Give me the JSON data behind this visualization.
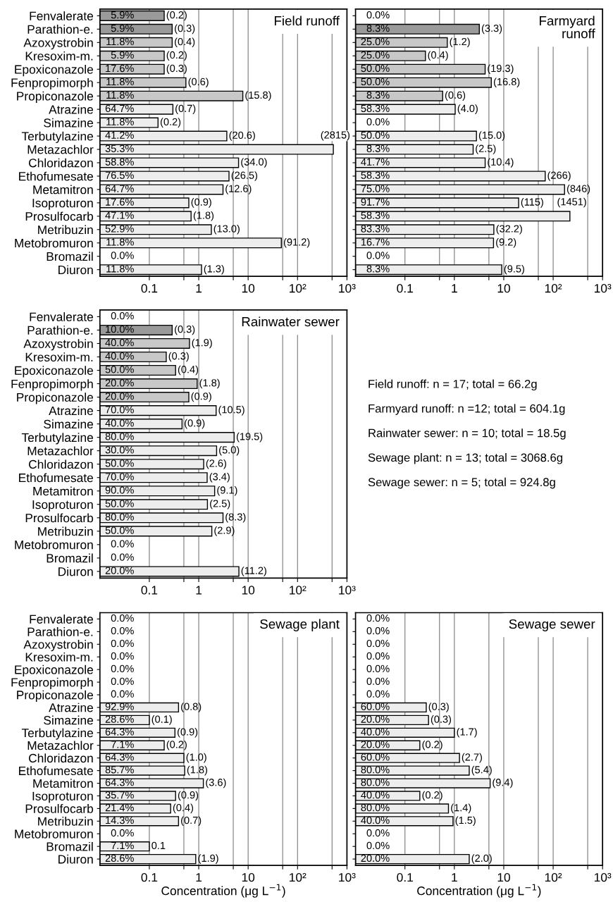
{
  "chart_data": [
    {
      "type": "bar",
      "orientation": "horizontal",
      "log": "x",
      "grid": "x",
      "title": "Field runoff",
      "categories": [
        "Fenvalerate",
        "Parathion-e.",
        "Azoxystrobin",
        "Kresoxim-m.",
        "Epoxiconazole",
        "Fenpropimorph",
        "Propiconazole",
        "Atrazine",
        "Simazine",
        "Terbutylazine",
        "Metazachlor",
        "Chloridazon",
        "Ethofumesate",
        "Metamitron",
        "Isoproturon",
        "Prosulfocarb",
        "Metribuzin",
        "Metobromuron",
        "Bromazil",
        "Diuron"
      ],
      "values": [
        0.2,
        0.29,
        0.29,
        0.2,
        0.2,
        0.55,
        7.8,
        0.3,
        0.15,
        3.7,
        530,
        6.4,
        4.1,
        3.1,
        0.63,
        0.7,
        1.8,
        47,
        null,
        1.14
      ],
      "colors": [
        "#9a9a9a",
        "#9a9a9a",
        "#c8c8c8",
        "#c8c8c8",
        "#c8c8c8",
        "#c8c8c8",
        "#c8c8c8",
        "#ededed",
        "#ededed",
        "#ededed",
        "#ededed",
        "#ededed",
        "#ededed",
        "#ededed",
        "#ededed",
        "#ededed",
        "#ededed",
        "#ededed",
        "#ededed",
        "#ededed"
      ],
      "xlim": [
        0.01,
        1000
      ],
      "xticks": [
        0.1,
        {
          "value": 0.5,
          "label": null
        },
        1,
        {
          "value": 5,
          "label": null
        },
        10,
        {
          "value": 50,
          "label": null
        },
        {
          "value": 100,
          "label": "10²"
        },
        {
          "value": 500,
          "label": null
        },
        {
          "value": 1000,
          "label": "10³"
        }
      ],
      "annotations": [
        "5.9%",
        "5.9%",
        "11.8%",
        "5.9%",
        "17.6%",
        "11.8%",
        "11.8%",
        "64.7%",
        "11.8%",
        "41.2%",
        "35.3%",
        "58.8%",
        "76.5%",
        "64.7%",
        "17.6%",
        "47.1%",
        "52.9%",
        "11.8%",
        "0.0%",
        "11.8%",
        {
          "text": "(0.2)",
          "x": 0.2,
          "y": "Fenvalerate"
        },
        {
          "text": "(0.3)",
          "x": 0.29,
          "y": "Parathion-e."
        },
        {
          "text": "(0.4)",
          "x": 0.29,
          "y": "Azoxystrobin"
        },
        {
          "text": "(0.2)",
          "x": 0.2,
          "y": "Kresoxim-m."
        },
        {
          "text": "(0.3)",
          "x": 0.2,
          "y": "Epoxiconazole"
        },
        {
          "text": "(0.6)",
          "x": 0.55,
          "y": "Fenpropimorph"
        },
        {
          "text": "(15.8)",
          "x": 7.8,
          "y": "Propiconazole"
        },
        {
          "text": "(0.7)",
          "x": 0.3,
          "y": "Atrazine"
        },
        {
          "text": "(0.2)",
          "x": 0.15,
          "y": "Simazine"
        },
        {
          "text": "(20.6)",
          "x": 3.7,
          "y": "Terbutylazine"
        },
        {
          "text": "(2815)",
          "x": 530,
          "y": "Metazachlor"
        },
        {
          "text": "(34.0)",
          "x": 6.4,
          "y": "Chloridazon"
        },
        {
          "text": "(26.5)",
          "x": 4.1,
          "y": "Ethofumesate"
        },
        {
          "text": "(12.6)",
          "x": 3.1,
          "y": "Metamitron"
        },
        {
          "text": "(0.9)",
          "x": 0.63,
          "y": "Isoproturon"
        },
        {
          "text": "(1.8)",
          "x": 0.7,
          "y": "Prosulfocarb"
        },
        {
          "text": "(13.0)",
          "x": 1.8,
          "y": "Metribuzin"
        },
        {
          "text": "(91.2)",
          "x": 47,
          "y": "Metobromuron"
        },
        {
          "text": "(1.3)",
          "x": 1.14,
          "y": "Diuron"
        }
      ]
    },
    {
      "type": "bar",
      "orientation": "horizontal",
      "log": "x",
      "grid": "x",
      "title": "Farmyard\nrunoff",
      "tick_labels": "x",
      "categories": [
        "Fenvalerate",
        "Parathion-e.",
        "Azoxystrobin",
        "Kresoxim-m.",
        "Epoxiconazole",
        "Fenpropimorph",
        "Propiconazole",
        "Atrazine",
        "Simazine",
        "Terbutylazine",
        "Metazachlor",
        "Chloridazon",
        "Ethofumesate",
        "Metamitron",
        "Isoproturon",
        "Prosulfocarb",
        "Metribuzin",
        "Metobromuron",
        "Bromazil",
        "Diuron"
      ],
      "values": [
        null,
        3.2,
        0.72,
        0.26,
        4.2,
        5.6,
        0.58,
        1.04,
        null,
        2.8,
        2.4,
        4.2,
        69,
        170,
        20,
        218,
        6.3,
        6.2,
        null,
        9.1
      ],
      "colors": [
        "#9a9a9a",
        "#9a9a9a",
        "#c8c8c8",
        "#c8c8c8",
        "#c8c8c8",
        "#c8c8c8",
        "#c8c8c8",
        "#ededed",
        "#ededed",
        "#ededed",
        "#ededed",
        "#ededed",
        "#ededed",
        "#ededed",
        "#ededed",
        "#ededed",
        "#ededed",
        "#ededed",
        "#ededed",
        "#ededed"
      ],
      "xlim": [
        0.01,
        1000
      ],
      "xticks": [
        0.1,
        {
          "value": 0.5,
          "label": null
        },
        1,
        {
          "value": 5,
          "label": null
        },
        10,
        {
          "value": 50,
          "label": null
        },
        {
          "value": 100,
          "label": "10²"
        },
        {
          "value": 500,
          "label": null
        },
        {
          "value": 1000,
          "label": "10³"
        }
      ],
      "annotations": [
        "0.0%",
        "8.3%",
        "25.0%",
        "25.0%",
        "50.0%",
        "50.0%",
        "8.3%",
        "58.3%",
        "0.0%",
        "50.0%",
        "8.3%",
        "41.7%",
        "58.3%",
        "75.0%",
        "91.7%",
        "58.3%",
        "83.3%",
        "16.7%",
        "0.0%",
        "8.3%",
        {
          "text": "(3.3)",
          "x": 3.2,
          "y": "Parathion-e."
        },
        {
          "text": "(1.2)",
          "x": 0.72,
          "y": "Azoxystrobin"
        },
        {
          "text": "(0.4)",
          "x": 0.26,
          "y": "Kresoxim-m."
        },
        {
          "text": "(19.3)",
          "x": 4.2,
          "y": "Epoxiconazole"
        },
        {
          "text": "(16.8)",
          "x": 5.6,
          "y": "Fenpropimorph"
        },
        {
          "text": "(0.6)",
          "x": 0.58,
          "y": "Propiconazole"
        },
        {
          "text": "(4.0)",
          "x": 1.04,
          "y": "Atrazine"
        },
        {
          "text": "(15.0)",
          "x": 2.8,
          "y": "Terbutylazine"
        },
        {
          "text": "(2.5)",
          "x": 2.4,
          "y": "Metazachlor"
        },
        {
          "text": "(10.4)",
          "x": 4.2,
          "y": "Chloridazon"
        },
        {
          "text": "(266)",
          "x": 69,
          "y": "Ethofumesate"
        },
        {
          "text": "(846)",
          "x": 170,
          "y": "Metamitron"
        },
        {
          "text": "(115)",
          "x": 20,
          "y": "Isoproturon"
        },
        {
          "text": "(1451)",
          "x": 218,
          "y": "Prosulfocarb"
        },
        {
          "text": "(32.2)",
          "x": 6.3,
          "y": "Metribuzin"
        },
        {
          "text": "(9.2)",
          "x": 6.2,
          "y": "Metobromuron"
        },
        {
          "text": "(9.5)",
          "x": 9.1,
          "y": "Diuron"
        }
      ]
    },
    {
      "type": "bar",
      "orientation": "horizontal",
      "log": "x",
      "grid": "x",
      "title": "Rainwater sewer",
      "categories": [
        "Fenvalerate",
        "Parathion-e.",
        "Azoxystrobin",
        "Kresoxim-m.",
        "Epoxiconazole",
        "Fenpropimorph",
        "Propiconazole",
        "Atrazine",
        "Simazine",
        "Terbutylazine",
        "Metazachlor",
        "Chloridazon",
        "Ethofumesate",
        "Metamitron",
        "Isoproturon",
        "Prosulfocarb",
        "Metribuzin",
        "Metobromuron",
        "Bromazil",
        "Diuron"
      ],
      "values": [
        null,
        0.29,
        0.65,
        0.22,
        0.34,
        0.93,
        0.63,
        2.25,
        0.46,
        5.2,
        2.3,
        1.26,
        1.48,
        2.1,
        1.5,
        3.1,
        1.84,
        null,
        null,
        6.5
      ],
      "colors": [
        "#9a9a9a",
        "#9a9a9a",
        "#c8c8c8",
        "#c8c8c8",
        "#c8c8c8",
        "#c8c8c8",
        "#c8c8c8",
        "#ededed",
        "#ededed",
        "#ededed",
        "#ededed",
        "#ededed",
        "#ededed",
        "#ededed",
        "#ededed",
        "#ededed",
        "#ededed",
        "#ededed",
        "#ededed",
        "#ededed"
      ],
      "xlim": [
        0.01,
        1000
      ],
      "xticks": [
        0.1,
        {
          "value": 0.5,
          "label": null
        },
        1,
        {
          "value": 5,
          "label": null
        },
        10,
        {
          "value": 50,
          "label": null
        },
        {
          "value": 100,
          "label": "10²"
        },
        {
          "value": 500,
          "label": null
        },
        {
          "value": 1000,
          "label": "10³"
        }
      ],
      "annotations": [
        "0.0%",
        "10.0%",
        "40.0%",
        "40.0%",
        "50.0%",
        "20.0%",
        "20.0%",
        "70.0%",
        "40.0%",
        "80.0%",
        "30.0%",
        "50.0%",
        "70.0%",
        "90.0%",
        "50.0%",
        "80.0%",
        "50.0%",
        "0.0%",
        "0.0%",
        "20.0%",
        {
          "text": "(0.3)",
          "x": 0.29,
          "y": "Parathion-e."
        },
        {
          "text": "(1.9)",
          "x": 0.65,
          "y": "Azoxystrobin"
        },
        {
          "text": "(0.3)",
          "x": 0.22,
          "y": "Kresoxim-m."
        },
        {
          "text": "(0.4)",
          "x": 0.34,
          "y": "Epoxiconazole"
        },
        {
          "text": "(1.8)",
          "x": 0.93,
          "y": "Fenpropimorph"
        },
        {
          "text": "(0.9)",
          "x": 0.63,
          "y": "Propiconazole"
        },
        {
          "text": "(10.5)",
          "x": 2.25,
          "y": "Atrazine"
        },
        {
          "text": "(0.9)",
          "x": 0.46,
          "y": "Simazine"
        },
        {
          "text": "(19.5)",
          "x": 5.2,
          "y": "Terbutylazine"
        },
        {
          "text": "(5.0)",
          "x": 2.3,
          "y": "Metazachlor"
        },
        {
          "text": "(2.6)",
          "x": 1.26,
          "y": "Chloridazon"
        },
        {
          "text": "(3.4)",
          "x": 1.48,
          "y": "Ethofumesate"
        },
        {
          "text": "(9.1)",
          "x": 2.1,
          "y": "Metamitron"
        },
        {
          "text": "(2.5)",
          "x": 1.5,
          "y": "Isoproturon"
        },
        {
          "text": "(8.3)",
          "x": 3.1,
          "y": "Prosulfocarb"
        },
        {
          "text": "(2.9)",
          "x": 1.84,
          "y": "Metribuzin"
        },
        {
          "text": "(11.2)",
          "x": 6.5,
          "y": "Diuron"
        }
      ]
    },
    {
      "type": "other",
      "annotations": [
        "Field runoff: n = 17; total = 66.2g",
        "Farmyard runoff: n =12; total = 604.1g",
        "Rainwater sewer: n = 10; total = 18.5g",
        "Sewage plant: n = 13; total = 3068.6g",
        "Sewage sewer: n = 5; total = 924.8g"
      ]
    },
    {
      "type": "bar",
      "orientation": "horizontal",
      "log": "x",
      "grid": "x",
      "title": "Sewage plant",
      "xlabel": "Concentration (μg L$^{−1}$)",
      "categories": [
        "Fenvalerate",
        "Parathion-e.",
        "Azoxystrobin",
        "Kresoxim-m.",
        "Epoxiconazole",
        "Fenpropimorph",
        "Propiconazole",
        "Atrazine",
        "Simazine",
        "Terbutylazine",
        "Metazachlor",
        "Chloridazon",
        "Ethofumesate",
        "Metamitron",
        "Isoproturon",
        "Prosulfocarb",
        "Metribuzin",
        "Metobromuron",
        "Bromazil",
        "Diuron"
      ],
      "values": [
        null,
        null,
        null,
        null,
        null,
        null,
        null,
        0.39,
        0.1,
        0.33,
        0.2,
        0.5,
        0.52,
        1.24,
        0.34,
        0.27,
        0.39,
        null,
        0.1,
        0.87
      ],
      "colors": [
        "#9a9a9a",
        "#9a9a9a",
        "#c8c8c8",
        "#c8c8c8",
        "#c8c8c8",
        "#c8c8c8",
        "#c8c8c8",
        "#ededed",
        "#ededed",
        "#ededed",
        "#ededed",
        "#ededed",
        "#ededed",
        "#ededed",
        "#ededed",
        "#ededed",
        "#ededed",
        "#ededed",
        "#ededed",
        "#ededed"
      ],
      "xlim": [
        0.01,
        1000
      ],
      "xticks": [
        0.1,
        {
          "value": 0.5,
          "label": null
        },
        1,
        {
          "value": 5,
          "label": null
        },
        10,
        {
          "value": 50,
          "label": null
        },
        {
          "value": 100,
          "label": "10²"
        },
        {
          "value": 500,
          "label": null
        },
        {
          "value": 1000,
          "label": "10³"
        }
      ],
      "annotations": [
        "0.0%",
        "0.0%",
        "0.0%",
        "0.0%",
        "0.0%",
        "0.0%",
        "0.0%",
        "92.9%",
        "28.6%",
        "64.3%",
        "7.1%",
        "64.3%",
        "85.7%",
        "64.3%",
        "35.7%",
        "21.4%",
        "14.3%",
        "0.0%",
        "7.1%",
        "28.6%",
        {
          "text": "(0.8)",
          "x": 0.39,
          "y": "Atrazine"
        },
        {
          "text": "(0.1)",
          "x": 0.1,
          "y": "Simazine"
        },
        {
          "text": "(0.9)",
          "x": 0.33,
          "y": "Terbutylazine"
        },
        {
          "text": "(0.2)",
          "x": 0.2,
          "y": "Metazachlor"
        },
        {
          "text": "(1.0)",
          "x": 0.5,
          "y": "Chloridazon"
        },
        {
          "text": "(1.8)",
          "x": 0.52,
          "y": "Ethofumesate"
        },
        {
          "text": "(3.6)",
          "x": 1.24,
          "y": "Metamitron"
        },
        {
          "text": "(0.9)",
          "x": 0.34,
          "y": "Isoproturon"
        },
        {
          "text": "(0.4)",
          "x": 0.27,
          "y": "Prosulfocarb"
        },
        {
          "text": "(0.7)",
          "x": 0.39,
          "y": "Metribuzin"
        },
        {
          "text": "0.1",
          "x": 0.1,
          "y": "Bromazil"
        },
        {
          "text": "(1.9)",
          "x": 0.87,
          "y": "Diuron"
        }
      ]
    },
    {
      "type": "bar",
      "orientation": "horizontal",
      "log": "x",
      "grid": "x",
      "title": "Sewage sewer",
      "xlabel": "Concentration (μg L$^{−1}$)",
      "tick_labels": "x",
      "categories": [
        "Fenvalerate",
        "Parathion-e.",
        "Azoxystrobin",
        "Kresoxim-m.",
        "Epoxiconazole",
        "Fenpropimorph",
        "Propiconazole",
        "Atrazine",
        "Simazine",
        "Terbutylazine",
        "Metazachlor",
        "Chloridazon",
        "Ethofumesate",
        "Metamitron",
        "Isoproturon",
        "Prosulfocarb",
        "Metribuzin",
        "Metobromuron",
        "Bromazil",
        "Diuron"
      ],
      "values": [
        null,
        null,
        null,
        null,
        null,
        null,
        null,
        0.27,
        0.3,
        1.0,
        0.2,
        1.27,
        2.0,
        5.3,
        0.2,
        0.76,
        0.94,
        null,
        null,
        2.0
      ],
      "colors": [
        "#9a9a9a",
        "#9a9a9a",
        "#c8c8c8",
        "#c8c8c8",
        "#c8c8c8",
        "#c8c8c8",
        "#c8c8c8",
        "#ededed",
        "#ededed",
        "#ededed",
        "#ededed",
        "#ededed",
        "#ededed",
        "#ededed",
        "#ededed",
        "#ededed",
        "#ededed",
        "#ededed",
        "#ededed",
        "#ededed"
      ],
      "xlim": [
        0.01,
        1000
      ],
      "xticks": [
        0.1,
        {
          "value": 0.5,
          "label": null
        },
        1,
        {
          "value": 5,
          "label": null
        },
        10,
        {
          "value": 50,
          "label": null
        },
        {
          "value": 100,
          "label": "10²"
        },
        {
          "value": 500,
          "label": null
        },
        {
          "value": 1000,
          "label": "10³"
        }
      ],
      "annotations": [
        "0.0%",
        "0.0%",
        "0.0%",
        "0.0%",
        "0.0%",
        "0.0%",
        "0.0%",
        "60.0%",
        "20.0%",
        "40.0%",
        "20.0%",
        "60.0%",
        "80.0%",
        "80.0%",
        "40.0%",
        "80.0%",
        "40.0%",
        "0.0%",
        "0.0%",
        "20.0%",
        {
          "text": "(0.3)",
          "x": 0.27,
          "y": "Atrazine"
        },
        {
          "text": "(0.3)",
          "x": 0.3,
          "y": "Simazine"
        },
        {
          "text": "(1.7)",
          "x": 1.0,
          "y": "Terbutylazine"
        },
        {
          "text": "(0.2)",
          "x": 0.2,
          "y": "Metazachlor"
        },
        {
          "text": "(2.7)",
          "x": 1.27,
          "y": "Chloridazon"
        },
        {
          "text": "(5.4)",
          "x": 2.0,
          "y": "Ethofumesate"
        },
        {
          "text": "(9.4)",
          "x": 5.3,
          "y": "Metamitron"
        },
        {
          "text": "(0.2)",
          "x": 0.2,
          "y": "Isoproturon"
        },
        {
          "text": "(1.4)",
          "x": 0.76,
          "y": "Prosulfocarb"
        },
        {
          "text": "(1.5)",
          "x": 0.94,
          "y": "Metribuzin"
        },
        {
          "text": "(2.0)",
          "x": 2.0,
          "y": "Diuron"
        }
      ]
    }
  ]
}
